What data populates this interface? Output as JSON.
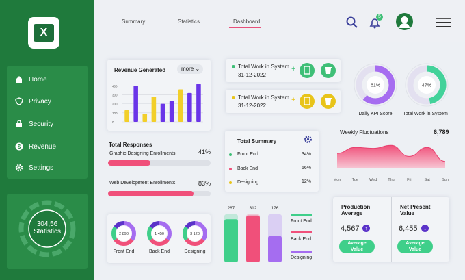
{
  "sidebar": {
    "items": [
      {
        "label": "Home",
        "icon": "home-icon"
      },
      {
        "label": "Privacy",
        "icon": "shield-icon"
      },
      {
        "label": "Security",
        "icon": "lock-icon"
      },
      {
        "label": "Revenue",
        "icon": "dollar-icon"
      },
      {
        "label": "Settings",
        "icon": "gear-icon"
      }
    ],
    "stat_value": "304,56",
    "stat_label": "Statistics"
  },
  "header": {
    "tabs": [
      "Summary",
      "Statistics",
      "Dashboard"
    ],
    "active_tab": "Dashboard",
    "notification_count": "5"
  },
  "revenue": {
    "title": "Revenue Generated",
    "more": "more",
    "yticks": [
      "400",
      "300",
      "200",
      "100",
      "0"
    ],
    "chart_data": {
      "type": "bar",
      "title": "Revenue Generated",
      "ylim": [
        0,
        440
      ],
      "yticks": [
        0,
        100,
        200,
        300,
        400
      ],
      "values": [
        130,
        400,
        90,
        280,
        200,
        230,
        360,
        320,
        420
      ],
      "colors": [
        "#f2cf2a",
        "#6a35e8",
        "#f2cf2a",
        "#f2cf2a",
        "#6a35e8",
        "#6a35e8",
        "#f2cf2a",
        "#6a35e8",
        "#6a35e8"
      ]
    }
  },
  "work": [
    {
      "title": "Total Work in System",
      "date": "31-12-2022",
      "dot": "#3fbf77",
      "btn": "#3fbf77"
    },
    {
      "title": "Total Work in System",
      "date": "31-12-2022",
      "dot": "#e8c41a",
      "btn": "#e8c41a"
    }
  ],
  "kpi": [
    {
      "value": "61%",
      "label": "Daily KPI Score",
      "pct": 61,
      "color": "#a66df0"
    },
    {
      "value": "47%",
      "label": "Total Work in System",
      "pct": 47,
      "color": "#43d29a"
    }
  ],
  "responses": {
    "title": "Total Responses",
    "items": [
      {
        "label": "Graphic Designing Enrollments",
        "pct": "41%",
        "fill": 0.41
      },
      {
        "label": "Web Development Enrollments",
        "pct": "83%",
        "fill": 0.83
      }
    ]
  },
  "summary": {
    "title": "Total Summary",
    "rows": [
      {
        "label": "Front End",
        "value": "34%",
        "color": "#3fbf77"
      },
      {
        "label": "Back End",
        "value": "56%",
        "color": "#f0507a"
      },
      {
        "label": "Designing",
        "value": "12%",
        "color": "#e8c41a"
      }
    ]
  },
  "weekly": {
    "title": "Weekly Fluctuations",
    "value": "6,789",
    "chart_data": {
      "type": "area",
      "title": "Weekly Fluctuations",
      "x": [
        "Mon",
        "Tue",
        "Wed",
        "Thu",
        "Fri",
        "Sat",
        "Sun"
      ],
      "values": [
        30,
        42,
        40,
        46,
        24,
        42,
        14
      ],
      "ylim": [
        0,
        60
      ]
    }
  },
  "donuts": [
    {
      "value": "2 890",
      "label": "Front End"
    },
    {
      "value": "1 450",
      "label": "Back End"
    },
    {
      "value": "3 120",
      "label": "Designing"
    }
  ],
  "columns": {
    "chart_data": {
      "type": "bar",
      "categories": [
        "Front End",
        "Back End",
        "Designing"
      ],
      "values": [
        287,
        312,
        176
      ],
      "colors": [
        "#3fcf8a",
        "#f0507a",
        "#a56df0"
      ]
    },
    "labels": [
      "287",
      "312",
      "176"
    ],
    "legend": [
      "Front End",
      "Back End",
      "Designing"
    ]
  },
  "production": {
    "title": "Production Average",
    "value": "4,567",
    "btn": "Average Value"
  },
  "npv": {
    "title": "Net Present Value",
    "value": "6,455",
    "btn": "Average Value"
  }
}
